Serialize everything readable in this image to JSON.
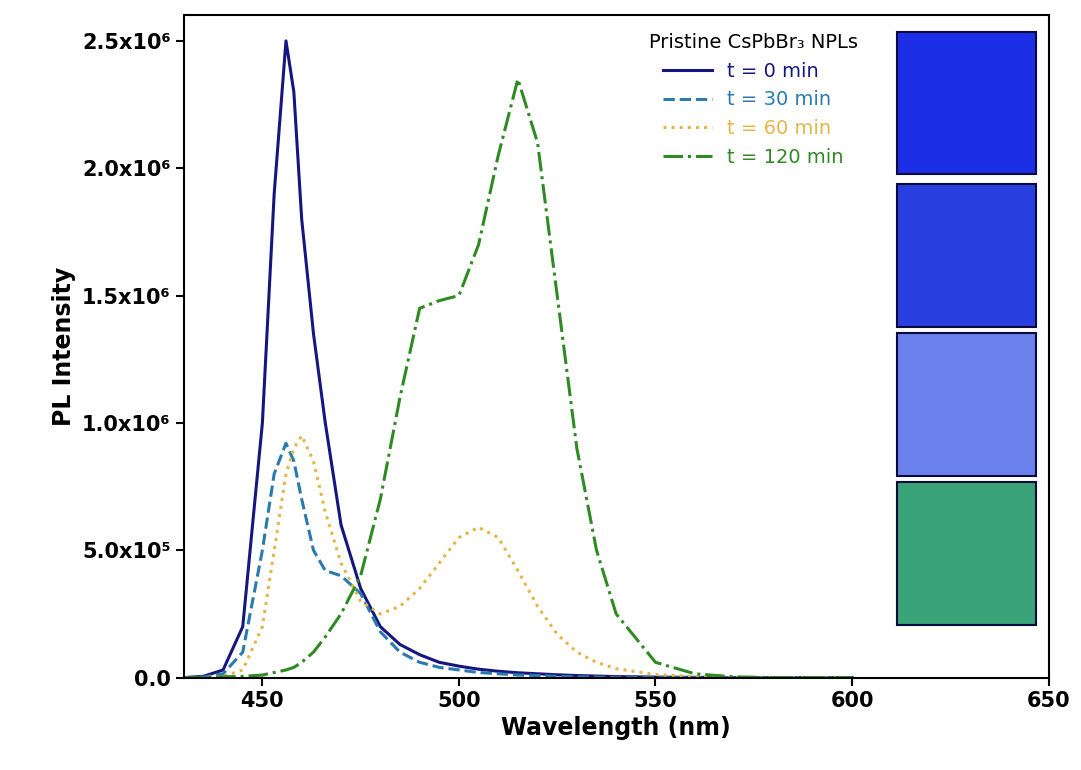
{
  "chart_data": {
    "type": "line",
    "x_label": "Wavelength (nm)",
    "y_label": "PL Intensity",
    "legend_title": "Pristine CsPbBr₃ NPLs",
    "legend": "upper right",
    "x": [
      430,
      435,
      440,
      445,
      450,
      453,
      456,
      458,
      460,
      463,
      466,
      470,
      475,
      480,
      485,
      490,
      495,
      500,
      505,
      510,
      515,
      520,
      525,
      530,
      535,
      540,
      550,
      560,
      570,
      580,
      600
    ],
    "series": [
      {
        "name": "t = 0 min",
        "color": "#161680",
        "line_style": "solid",
        "values": [
          0,
          5000,
          30000,
          200000,
          1000000,
          1900000,
          2500000,
          2300000,
          1800000,
          1350000,
          1000000,
          600000,
          350000,
          200000,
          130000,
          90000,
          60000,
          45000,
          33000,
          25000,
          19000,
          15000,
          11000,
          8000,
          6000,
          4000,
          2000,
          1000,
          0,
          0,
          0
        ]
      },
      {
        "name": "t = 30 min",
        "color": "#2a7ab0",
        "line_style": "dashed",
        "values": [
          0,
          2000,
          15000,
          100000,
          500000,
          800000,
          920000,
          850000,
          700000,
          500000,
          420000,
          400000,
          330000,
          180000,
          100000,
          60000,
          40000,
          30000,
          20000,
          15000,
          10000,
          8000,
          5000,
          3000,
          2000,
          1000,
          0,
          0,
          0,
          0,
          0
        ]
      },
      {
        "name": "t = 60 min",
        "color": "#e6b54a",
        "line_style": "dotted",
        "values": [
          0,
          0,
          5000,
          30000,
          200000,
          500000,
          800000,
          900000,
          950000,
          850000,
          650000,
          450000,
          300000,
          250000,
          280000,
          350000,
          450000,
          550000,
          590000,
          550000,
          420000,
          280000,
          170000,
          100000,
          60000,
          35000,
          12000,
          4000,
          1000,
          0,
          0
        ]
      },
      {
        "name": "t = 120 min",
        "color": "#2e8b22",
        "line_style": "dashdot",
        "values": [
          0,
          0,
          3000,
          5000,
          10000,
          20000,
          30000,
          40000,
          60000,
          100000,
          160000,
          250000,
          400000,
          700000,
          1100000,
          1450000,
          1480000,
          1500000,
          1700000,
          2050000,
          2350000,
          2100000,
          1500000,
          900000,
          500000,
          250000,
          60000,
          15000,
          3000,
          0,
          0
        ]
      }
    ],
    "xlim": [
      430,
      650
    ],
    "xticks": [
      450,
      500,
      550,
      600,
      650
    ],
    "ylim": [
      0,
      2600000
    ],
    "yticks": [
      {
        "value": 0,
        "label": "0.0"
      },
      {
        "value": 500000,
        "label": "5.0x10⁵"
      },
      {
        "value": 1000000,
        "label": "1.0x10⁶"
      },
      {
        "value": 1500000,
        "label": "1.5x10⁶"
      },
      {
        "value": 2000000,
        "label": "2.0x10⁶"
      },
      {
        "value": 2500000,
        "label": "2.5x10⁶"
      }
    ]
  }
}
